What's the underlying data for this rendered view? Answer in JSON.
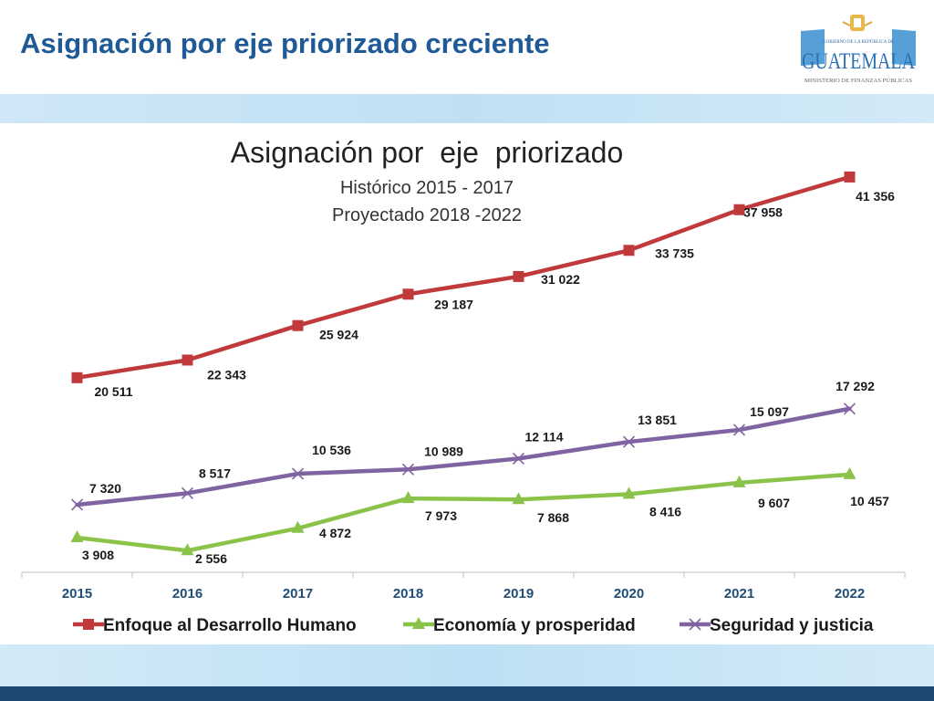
{
  "slide": {
    "title": "Asignación por eje priorizado creciente",
    "logo": {
      "small_text": "GOBIERNO DE LA REPÚBLICA DE",
      "country": "GUATEMALA",
      "ministry": "MINISTERIO DE FINANZAS PÚBLICAS"
    }
  },
  "colors": {
    "title": "#1f5a96",
    "band": "#c8e4f5",
    "bottom_bar": "#1d4a72"
  },
  "chart_data": {
    "type": "line",
    "title": "Asignación por  eje  priorizado",
    "subtitle_lines": [
      "Histórico 2015 - 2017",
      "Proyectado 2018 -2022"
    ],
    "xlabel": "",
    "ylabel": "",
    "categories": [
      "2015",
      "2016",
      "2017",
      "2018",
      "2019",
      "2020",
      "2021",
      "2022"
    ],
    "ylim": [
      0,
      42000
    ],
    "grid": false,
    "legend_position": "bottom",
    "series": [
      {
        "name": "Enfoque al Desarrollo Humano",
        "color": "#c0393b",
        "marker": "square",
        "values": [
          20511,
          22343,
          25924,
          29187,
          31022,
          33735,
          37958,
          41356
        ],
        "labels": [
          "20 511",
          "22 343",
          "25 924",
          "29 187",
          "31 022",
          "33 735",
          "37 958",
          "41 356"
        ]
      },
      {
        "name": "Economía y prosperidad",
        "color": "#8bc34a",
        "marker": "triangle",
        "values": [
          3908,
          2556,
          4872,
          7973,
          7868,
          8416,
          9607,
          10457
        ],
        "labels": [
          "3 908",
          "2 556",
          "4 872",
          "7 973",
          "7 868",
          "8 416",
          "9 607",
          "10 457"
        ]
      },
      {
        "name": "Seguridad y justicia",
        "color": "#8064a2",
        "marker": "x",
        "values": [
          7320,
          8517,
          10536,
          10989,
          12114,
          13851,
          15097,
          17292
        ],
        "labels": [
          "7 320",
          "8 517",
          "10 536",
          "10 989",
          "12 114",
          "13 851",
          "15 097",
          "17 292"
        ]
      }
    ]
  }
}
